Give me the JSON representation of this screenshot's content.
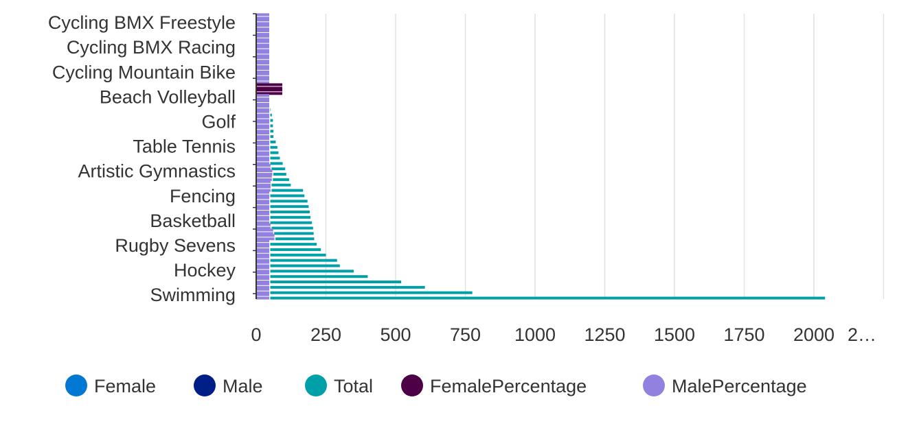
{
  "chart_data": {
    "type": "bar",
    "orientation": "horizontal",
    "title": "",
    "xlabel": "",
    "ylabel": "",
    "category_labels_shown": [
      "Cycling BMX Freestyle",
      "Cycling BMX Racing",
      "Cycling Mountain Bike",
      "Beach Volleyball",
      "Golf",
      "Table Tennis",
      "Artistic Gymnastics",
      "Fencing",
      "Basketball",
      "Rugby Sevens",
      "Hockey",
      "Swimming"
    ],
    "x_ticks": [
      "0",
      "250",
      "500",
      "750",
      "1000",
      "1250",
      "1500",
      "1750",
      "2000",
      "2…"
    ],
    "xlim": [
      0,
      2250
    ],
    "grid": "vertical",
    "legend_position": "bottom",
    "series": [
      {
        "name": "Female",
        "color": "#0078d4"
      },
      {
        "name": "Male",
        "color": "#001e87"
      },
      {
        "name": "Total",
        "color": "#00a0a8",
        "values": [
          6,
          8,
          10,
          12,
          12,
          14,
          16,
          18,
          22,
          22,
          24,
          24,
          24,
          31,
          36,
          43,
          48,
          52,
          56,
          60,
          60,
          62,
          62,
          70,
          76,
          80,
          85,
          95,
          104,
          108,
          118,
          124,
          168,
          173,
          184,
          188,
          192,
          195,
          200,
          204,
          206,
          208,
          217,
          232,
          250,
          290,
          300,
          350,
          400,
          520,
          605,
          775,
          2040
        ]
      },
      {
        "name": "FemalePercentage",
        "color": "#4d0045",
        "values": [
          0,
          0,
          0,
          0,
          0,
          0,
          0,
          0,
          0,
          0,
          0,
          0,
          0,
          100,
          100,
          0,
          0,
          0,
          0,
          0,
          0,
          0,
          0,
          0,
          0,
          0,
          0,
          0,
          0,
          0,
          0,
          0,
          0,
          0,
          0,
          0,
          0,
          0,
          0,
          0,
          0,
          0,
          0,
          0,
          0,
          0,
          0,
          0,
          0,
          0,
          0,
          0,
          0
        ]
      },
      {
        "name": "MalePercentage",
        "color": "#9381e0",
        "values": [
          50,
          50,
          50,
          50,
          50,
          50,
          50,
          50,
          50,
          50,
          50,
          50,
          50,
          0,
          0,
          50,
          50,
          50,
          50,
          50,
          50,
          50,
          50,
          50,
          50,
          50,
          50,
          50,
          55,
          62,
          60,
          55,
          55,
          50,
          50,
          50,
          50,
          50,
          50,
          55,
          65,
          70,
          50,
          50,
          50,
          50,
          50,
          50,
          50,
          50,
          50,
          50,
          50
        ]
      }
    ]
  }
}
